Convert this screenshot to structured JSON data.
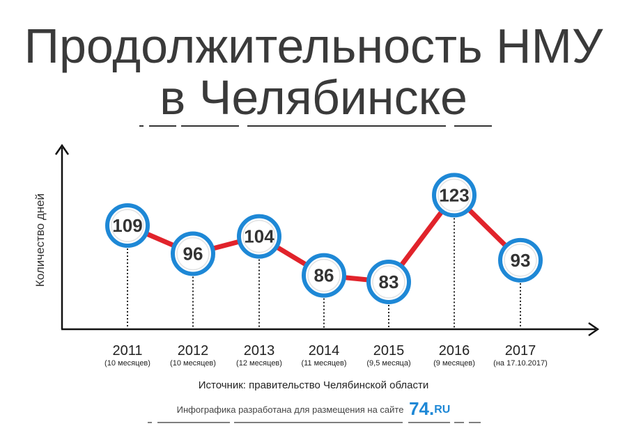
{
  "title": {
    "line1": "Продолжительность НМУ",
    "line2": "в Челябинске"
  },
  "chart_data": {
    "type": "line",
    "title": "Продолжительность НМУ в Челябинске",
    "ylabel": "Количество дней",
    "xlabel": "",
    "categories": [
      "2011",
      "2012",
      "2013",
      "2014",
      "2015",
      "2016",
      "2017"
    ],
    "category_notes": [
      "(10 месяцев)",
      "(10 месяцев)",
      "(12 месяцев)",
      "(11 месяцев)",
      "(9,5 месяца)",
      "(9 месяцев)",
      "(на 17.10.2017)"
    ],
    "series": [
      {
        "values": [
          109,
          96,
          104,
          86,
          83,
          123,
          93
        ]
      }
    ],
    "data_labels": [
      "109",
      "96",
      "104",
      "86",
      "83",
      "123",
      "93"
    ],
    "line_color": "#e1232b",
    "marker_color": "#1e88d6",
    "grid": false,
    "legend": "none"
  },
  "source": "Источник: правительство Челябинской области",
  "credit": {
    "text": "Инфографика разработана для размещения на сайте",
    "logo_num": "74",
    "logo_dot": ".",
    "logo_ru": "RU"
  }
}
